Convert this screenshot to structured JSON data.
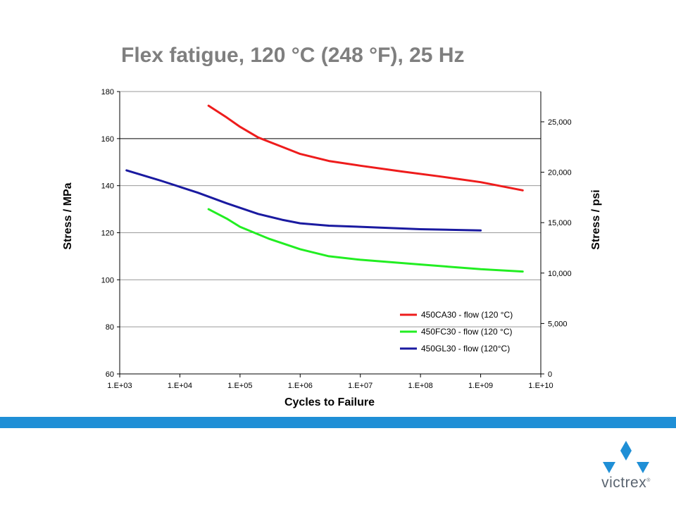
{
  "slide": {
    "title": "Flex fatigue, 120 °C (248 °F), 25 Hz"
  },
  "brand": {
    "name": "victrex",
    "mark": "®",
    "color": "#1f8fd6"
  },
  "chart_data": {
    "type": "line",
    "x_scale": "log",
    "xlabel": "Cycles to Failure",
    "ylabel": "Stress / MPa",
    "y2label": "Stress / psi",
    "xlim": [
      1000,
      10000000000
    ],
    "ylim": [
      60,
      180
    ],
    "y2lim": [
      0,
      28000
    ],
    "x_ticks": [
      "1.E+03",
      "1.E+04",
      "1.E+05",
      "1.E+06",
      "1.E+07",
      "1.E+08",
      "1.E+09",
      "1.E+10"
    ],
    "y_ticks": [
      "60",
      "80",
      "100",
      "120",
      "140",
      "160",
      "180"
    ],
    "y2_ticks": [
      "0",
      "5,000",
      "10,000",
      "15,000",
      "20,000",
      "25,000"
    ],
    "grid": "horizontal",
    "legend_position": "bottom-right",
    "series": [
      {
        "name": "450CA30 - flow (120 °C)",
        "color": "#ee1c1c",
        "points": [
          [
            30000,
            174
          ],
          [
            60000,
            169
          ],
          [
            100000,
            165
          ],
          [
            200000,
            160.5
          ],
          [
            500000,
            156.5
          ],
          [
            1000000,
            153.5
          ],
          [
            3000000,
            150.5
          ],
          [
            10000000,
            148.5
          ],
          [
            50000000,
            146
          ],
          [
            200000000,
            144
          ],
          [
            1000000000,
            141.5
          ],
          [
            5000000000,
            138
          ]
        ]
      },
      {
        "name": "450FC30 - flow (120 °C)",
        "color": "#22ee22",
        "points": [
          [
            30000,
            130
          ],
          [
            60000,
            126
          ],
          [
            100000,
            122.5
          ],
          [
            300000,
            117.5
          ],
          [
            1000000,
            113
          ],
          [
            3000000,
            110
          ],
          [
            10000000,
            108.5
          ],
          [
            100000000,
            106.5
          ],
          [
            1000000000,
            104.5
          ],
          [
            5000000000,
            103.5
          ]
        ]
      },
      {
        "name": "450GL30 - flow (120°C)",
        "color": "#1a1aa0",
        "points": [
          [
            1300,
            146.5
          ],
          [
            5000,
            142
          ],
          [
            20000,
            137
          ],
          [
            60000,
            132.5
          ],
          [
            200000,
            128
          ],
          [
            500000,
            125.5
          ],
          [
            1000000,
            124
          ],
          [
            3000000,
            123
          ],
          [
            10000000,
            122.5
          ],
          [
            100000000,
            121.5
          ],
          [
            1000000000,
            121
          ]
        ]
      }
    ]
  }
}
